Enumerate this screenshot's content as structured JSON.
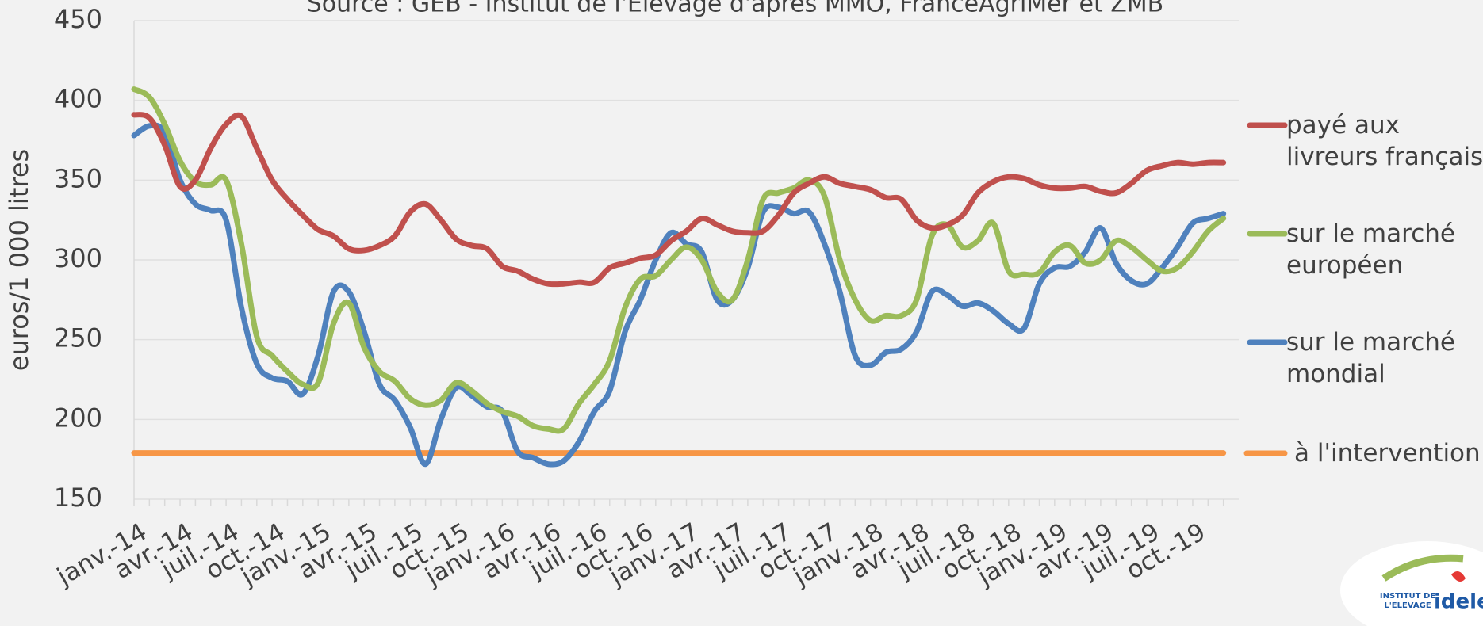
{
  "chart_data": {
    "type": "line",
    "subtitle": "Source : GEB - Institut de l'Elevage d'après MMO, FranceAgriMer et ZMB",
    "y_label": "euros/1 000 litres",
    "categories": [
      "janv.-14",
      null,
      null,
      "avr.-14",
      null,
      null,
      "juil.-14",
      null,
      null,
      "oct.-14",
      null,
      null,
      "janv.-15",
      null,
      null,
      "avr.-15",
      null,
      null,
      "juil.-15",
      null,
      null,
      "oct.-15",
      null,
      null,
      "janv.-16",
      null,
      null,
      "avr.-16",
      null,
      null,
      "juil.-16",
      null,
      null,
      "oct.-16",
      null,
      null,
      "janv.-17",
      null,
      null,
      "avr.-17",
      null,
      null,
      "juil.-17",
      null,
      null,
      "oct.-17",
      null,
      null,
      "janv.-18",
      null,
      null,
      "avr.-18",
      null,
      null,
      "juil.-18",
      null,
      null,
      "oct.-18",
      null,
      null,
      "janv.-19",
      null,
      null,
      "avr.-19",
      null,
      null,
      "juil.-19",
      null,
      null,
      "oct.-19",
      null,
      null
    ],
    "series": [
      {
        "name": "payé aux livreurs français",
        "color": "#c0504d",
        "values": [
          391,
          389,
          372,
          346,
          350,
          370,
          385,
          390,
          370,
          350,
          338,
          328,
          319,
          315,
          307,
          306,
          309,
          315,
          330,
          335,
          325,
          313,
          309,
          307,
          296,
          293,
          288,
          285,
          285,
          286,
          286,
          295,
          298,
          301,
          303,
          312,
          318,
          326,
          322,
          318,
          317,
          318,
          328,
          342,
          348,
          352,
          348,
          346,
          344,
          339,
          338,
          325,
          320,
          322,
          328,
          342,
          349,
          352,
          351,
          347,
          345,
          345,
          346,
          343,
          342,
          348,
          356,
          359,
          361,
          360,
          361,
          361
        ]
      },
      {
        "name": "sur le marché européen",
        "color": "#9bbb59",
        "values": [
          407,
          402,
          385,
          362,
          349,
          347,
          350,
          310,
          252,
          240,
          230,
          222,
          223,
          260,
          273,
          245,
          230,
          224,
          213,
          209,
          212,
          223,
          218,
          210,
          205,
          202,
          196,
          194,
          194,
          210,
          222,
          237,
          270,
          288,
          290,
          300,
          308,
          300,
          280,
          275,
          300,
          338,
          342,
          345,
          350,
          340,
          300,
          275,
          262,
          265,
          265,
          275,
          315,
          322,
          308,
          312,
          323,
          293,
          291,
          292,
          305,
          309,
          298,
          300,
          312,
          308,
          300,
          293,
          295,
          305,
          318,
          326
        ]
      },
      {
        "name": "sur le marché mondial",
        "color": "#4f81bd",
        "values": [
          378,
          384,
          380,
          350,
          335,
          331,
          325,
          270,
          235,
          226,
          224,
          216,
          240,
          280,
          280,
          255,
          222,
          212,
          195,
          172,
          200,
          220,
          215,
          208,
          205,
          180,
          176,
          172,
          174,
          186,
          205,
          218,
          255,
          275,
          300,
          317,
          310,
          305,
          275,
          275,
          295,
          330,
          333,
          329,
          330,
          310,
          280,
          240,
          234,
          242,
          244,
          255,
          280,
          278,
          271,
          273,
          268,
          260,
          257,
          285,
          295,
          296,
          305,
          320,
          298,
          287,
          285,
          295,
          308,
          323,
          326,
          329
        ]
      },
      {
        "name": "à l'intervention",
        "color": "#f79646",
        "values": [
          179,
          179,
          179,
          179,
          179,
          179,
          179,
          179,
          179,
          179,
          179,
          179,
          179,
          179,
          179,
          179,
          179,
          179,
          179,
          179,
          179,
          179,
          179,
          179,
          179,
          179,
          179,
          179,
          179,
          179,
          179,
          179,
          179,
          179,
          179,
          179,
          179,
          179,
          179,
          179,
          179,
          179,
          179,
          179,
          179,
          179,
          179,
          179,
          179,
          179,
          179,
          179,
          179,
          179,
          179,
          179,
          179,
          179,
          179,
          179,
          179,
          179,
          179,
          179,
          179,
          179,
          179,
          179,
          179,
          179,
          179,
          179
        ]
      }
    ],
    "ylim": [
      150,
      450
    ],
    "yticks": [
      150,
      200,
      250,
      300,
      350,
      400,
      450
    ],
    "grid": true
  },
  "logo": {
    "line1": "INSTITUT DE",
    "line2": "L'ELEVAGE",
    "brand": "idele"
  }
}
